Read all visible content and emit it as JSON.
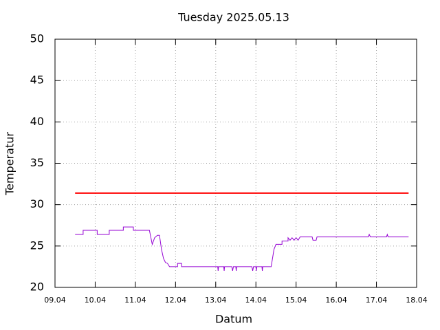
{
  "chart_data": {
    "type": "line",
    "title": "Tuesday 2025.05.13",
    "x_label": "Datum",
    "y_label": "Temperatur",
    "xlim": [
      9,
      18
    ],
    "xticks": [
      {
        "value": 9,
        "label": "09.04"
      },
      {
        "value": 10,
        "label": "10.04"
      },
      {
        "value": 11,
        "label": "11.04"
      },
      {
        "value": 12,
        "label": "12.04"
      },
      {
        "value": 13,
        "label": "13.04"
      },
      {
        "value": 14,
        "label": "14.04"
      },
      {
        "value": 15,
        "label": "15.04"
      },
      {
        "value": 16,
        "label": "16.04"
      },
      {
        "value": 17,
        "label": "17.04"
      },
      {
        "value": 18,
        "label": "18.04"
      }
    ],
    "ylim": [
      20,
      50
    ],
    "yticks": [
      20,
      25,
      30,
      35,
      40,
      45,
      50
    ],
    "grid": true,
    "series": [
      {
        "color": "#ff0000",
        "x": [
          9.5,
          17.8
        ],
        "values": [
          31.4,
          31.4
        ]
      },
      {
        "color": "#9400d3",
        "x": [
          9.5,
          9.7,
          9.7,
          10.05,
          10.05,
          10.35,
          10.35,
          10.7,
          10.7,
          10.95,
          10.95,
          11.35,
          11.42,
          11.48,
          11.55,
          11.6,
          11.65,
          11.7,
          11.75,
          11.8,
          11.85,
          12.05,
          12.05,
          12.15,
          12.15,
          13.05,
          13.06,
          13.07,
          13.2,
          13.21,
          13.22,
          13.4,
          13.42,
          13.44,
          13.5,
          13.51,
          13.52,
          13.9,
          13.92,
          13.94,
          14.0,
          14.01,
          14.02,
          14.15,
          14.16,
          14.17,
          14.38,
          14.45,
          14.5,
          14.65,
          14.65,
          14.8,
          14.8,
          14.85,
          14.9,
          14.95,
          15.0,
          15.05,
          15.1,
          15.4,
          15.42,
          15.5,
          15.52,
          16.8,
          16.82,
          16.85,
          17.25,
          17.27,
          17.29,
          17.8
        ],
        "values": [
          26.4,
          26.4,
          26.9,
          26.9,
          26.4,
          26.4,
          26.9,
          26.9,
          27.3,
          27.3,
          26.9,
          26.9,
          25.2,
          26.0,
          26.3,
          26.3,
          24.6,
          23.5,
          23.0,
          22.9,
          22.5,
          22.5,
          22.9,
          22.9,
          22.5,
          22.5,
          22.0,
          22.5,
          22.5,
          22.0,
          22.5,
          22.5,
          22.0,
          22.5,
          22.5,
          22.0,
          22.5,
          22.5,
          22.0,
          22.5,
          22.5,
          22.0,
          22.5,
          22.5,
          22.0,
          22.5,
          22.5,
          24.6,
          25.2,
          25.2,
          25.6,
          25.6,
          26.0,
          25.7,
          26.0,
          25.7,
          26.0,
          25.7,
          26.1,
          26.1,
          25.7,
          25.7,
          26.1,
          26.1,
          26.4,
          26.1,
          26.1,
          26.4,
          26.1,
          26.1
        ]
      }
    ]
  }
}
